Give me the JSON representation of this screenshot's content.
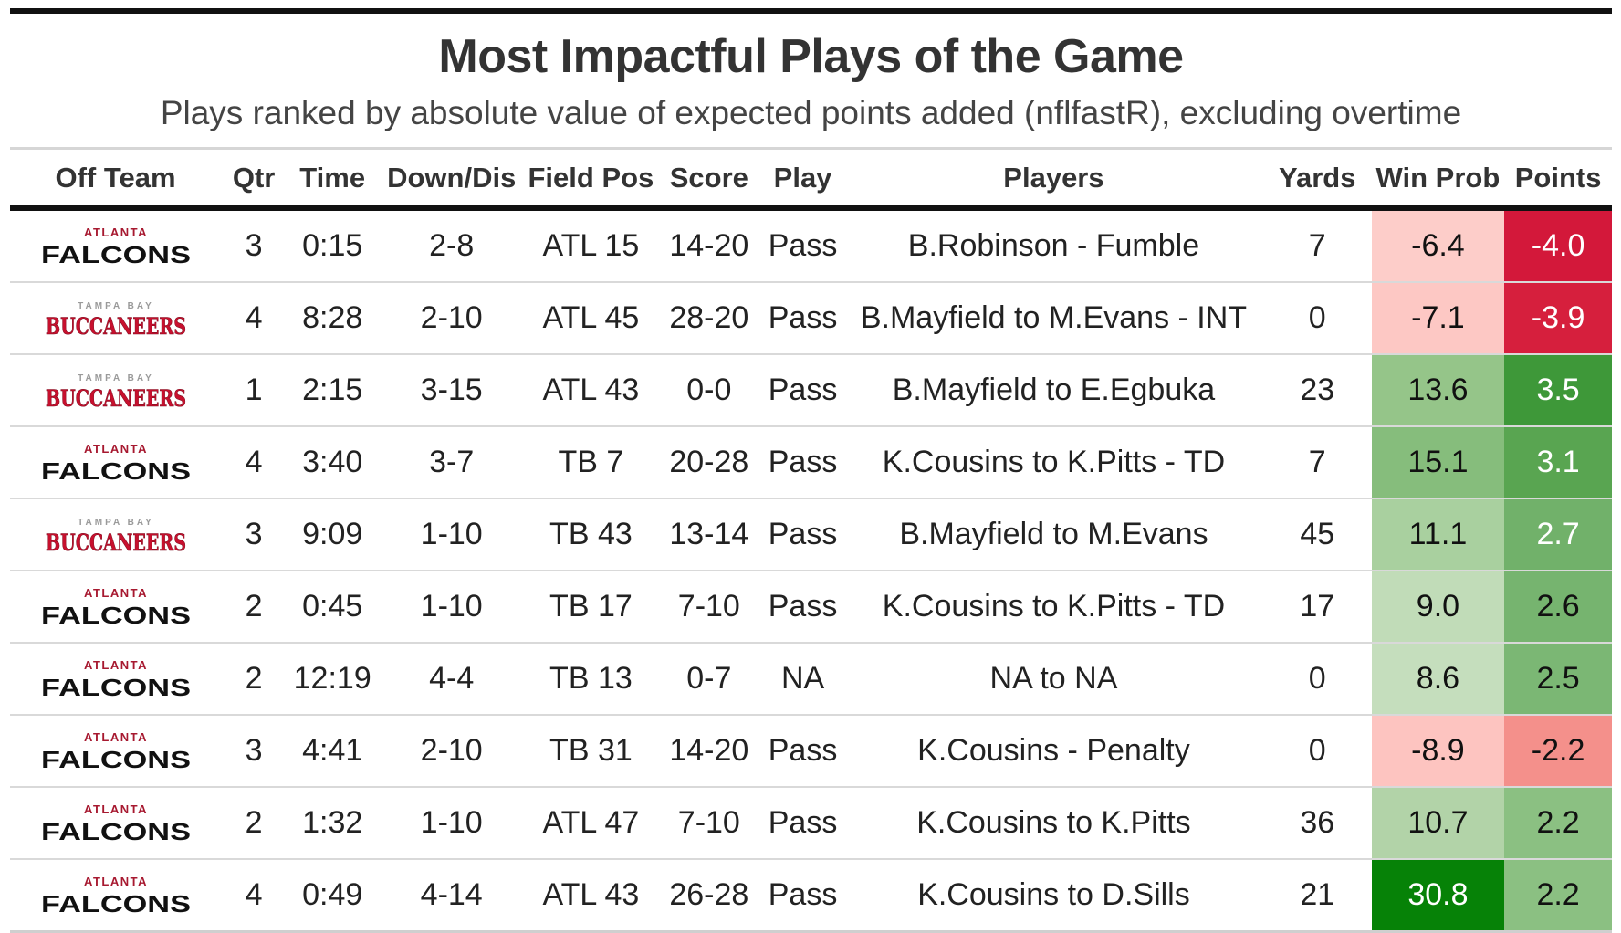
{
  "title": "Most Impactful Plays of the Game",
  "subtitle": "Plays ranked by absolute value of expected points added (nflfastR), excluding overtime",
  "columns": [
    "Off Team",
    "Qtr",
    "Time",
    "Down/Dis",
    "Field Pos",
    "Score",
    "Play",
    "Players",
    "Yards",
    "Win Prob",
    "Points"
  ],
  "logos": {
    "falcons": {
      "top": "ATLANTA",
      "main": "FALCONS",
      "top_color": "#a71930",
      "main_color": "#111111"
    },
    "buccaneers": {
      "top": "TAMPA BAY",
      "main": "BUCCANEERS",
      "top_color": "#9a9a9a",
      "main_color": "#c8102e"
    }
  },
  "rows": [
    {
      "team": "falcons",
      "qtr": "3",
      "time": "0:15",
      "down": "2-8",
      "field": "ATL 15",
      "score": "14-20",
      "play": "Pass",
      "players": "B.Robinson - Fumble",
      "yards": "7",
      "win_prob": "-6.4",
      "points": "-4.0",
      "wp_color": "#fdcdc9",
      "pts_color": "#d3183a"
    },
    {
      "team": "buccaneers",
      "qtr": "4",
      "time": "8:28",
      "down": "2-10",
      "field": "ATL 45",
      "score": "28-20",
      "play": "Pass",
      "players": "B.Mayfield to M.Evans - INT",
      "yards": "0",
      "win_prob": "-7.1",
      "points": "-3.9",
      "wp_color": "#fdc8c4",
      "pts_color": "#d61f3d"
    },
    {
      "team": "buccaneers",
      "qtr": "1",
      "time": "2:15",
      "down": "3-15",
      "field": "ATL 43",
      "score": "0-0",
      "play": "Pass",
      "players": "B.Mayfield to E.Egbuka",
      "yards": "23",
      "win_prob": "13.6",
      "points": "3.5",
      "wp_color": "#95c589",
      "pts_color": "#3e9839"
    },
    {
      "team": "falcons",
      "qtr": "4",
      "time": "3:40",
      "down": "3-7",
      "field": "TB 7",
      "score": "20-28",
      "play": "Pass",
      "players": "K.Cousins to K.Pitts - TD",
      "yards": "7",
      "win_prob": "15.1",
      "points": "3.1",
      "wp_color": "#86bd7c",
      "pts_color": "#59a551"
    },
    {
      "team": "buccaneers",
      "qtr": "3",
      "time": "9:09",
      "down": "1-10",
      "field": "TB 43",
      "score": "13-14",
      "play": "Pass",
      "players": "B.Mayfield to M.Evans",
      "yards": "45",
      "win_prob": "11.1",
      "points": "2.7",
      "wp_color": "#a9d09f",
      "pts_color": "#71b16a"
    },
    {
      "team": "falcons",
      "qtr": "2",
      "time": "0:45",
      "down": "1-10",
      "field": "TB 17",
      "score": "7-10",
      "play": "Pass",
      "players": "K.Cousins to K.Pitts - TD",
      "yards": "17",
      "win_prob": "9.0",
      "points": "2.6",
      "wp_color": "#c1dcb8",
      "pts_color": "#76b46f"
    },
    {
      "team": "falcons",
      "qtr": "2",
      "time": "12:19",
      "down": "4-4",
      "field": "TB 13",
      "score": "0-7",
      "play": "NA",
      "players": "NA to NA",
      "yards": "0",
      "win_prob": "8.6",
      "points": "2.5",
      "wp_color": "#c5debd",
      "pts_color": "#7bb774"
    },
    {
      "team": "falcons",
      "qtr": "3",
      "time": "4:41",
      "down": "2-10",
      "field": "TB 31",
      "score": "14-20",
      "play": "Pass",
      "players": "K.Cousins - Penalty",
      "yards": "0",
      "win_prob": "-8.9",
      "points": "-2.2",
      "wp_color": "#fdc4c0",
      "pts_color": "#f4908b"
    },
    {
      "team": "falcons",
      "qtr": "2",
      "time": "1:32",
      "down": "1-10",
      "field": "ATL 47",
      "score": "7-10",
      "play": "Pass",
      "players": "K.Cousins to K.Pitts",
      "yards": "36",
      "win_prob": "10.7",
      "points": "2.2",
      "wp_color": "#b2d3a8",
      "pts_color": "#8bc082"
    },
    {
      "team": "falcons",
      "qtr": "4",
      "time": "0:49",
      "down": "4-14",
      "field": "ATL 43",
      "score": "26-28",
      "play": "Pass",
      "players": "K.Cousins to D.Sills",
      "yards": "21",
      "win_prob": "30.8",
      "points": "2.2",
      "wp_color": "#068207",
      "pts_color": "#8bc082"
    }
  ]
}
